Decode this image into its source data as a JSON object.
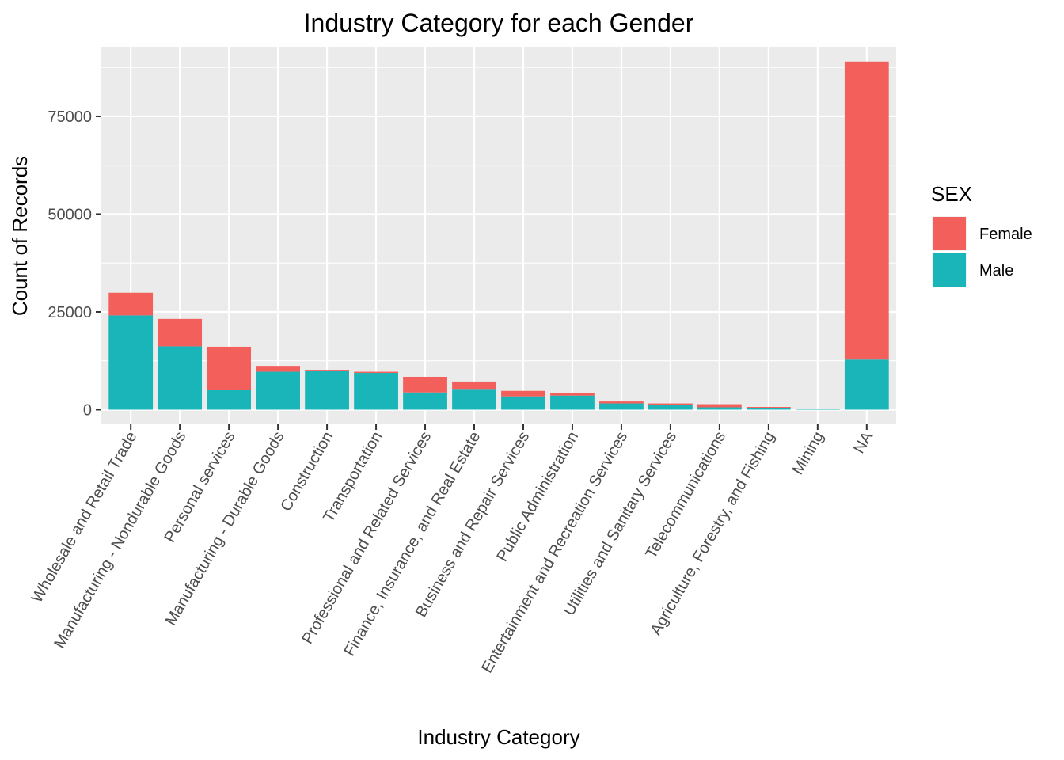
{
  "chart_data": {
    "type": "bar",
    "stacked": true,
    "title": "Industry Category for each Gender",
    "xlabel": "Industry Category",
    "ylabel": "Count of Records",
    "ylim": [
      -3750,
      92600
    ],
    "yticks": [
      0,
      25000,
      50000,
      75000
    ],
    "grid": true,
    "legend": {
      "title": "SEX",
      "placement": "right"
    },
    "categories": [
      "Wholesale and Retail Trade",
      "Manufacturing - Nondurable Goods",
      "Personal services",
      "Manufacturing - Durable Goods",
      "Construction",
      "Transportation",
      "Professional and Related Services",
      "Finance, Insurance, and Real Estate",
      "Business and Repair Services",
      "Public Administration",
      "Entertainment and Recreation Services",
      "Utilities and Sanitary Services",
      "Telecommunications",
      "Agriculture, Forestry, and Fishing",
      "Mining",
      "NA"
    ],
    "series": [
      {
        "name": "Male",
        "color": "#19B5B9",
        "values": [
          24100,
          16200,
          5100,
          9700,
          9900,
          9400,
          4400,
          5300,
          3400,
          3600,
          1600,
          1300,
          600,
          500,
          200,
          12800
        ]
      },
      {
        "name": "Female",
        "color": "#F3605C",
        "values": [
          5800,
          7000,
          11000,
          1500,
          300,
          300,
          4000,
          1900,
          1400,
          600,
          500,
          300,
          800,
          200,
          100,
          76200
        ]
      }
    ]
  }
}
